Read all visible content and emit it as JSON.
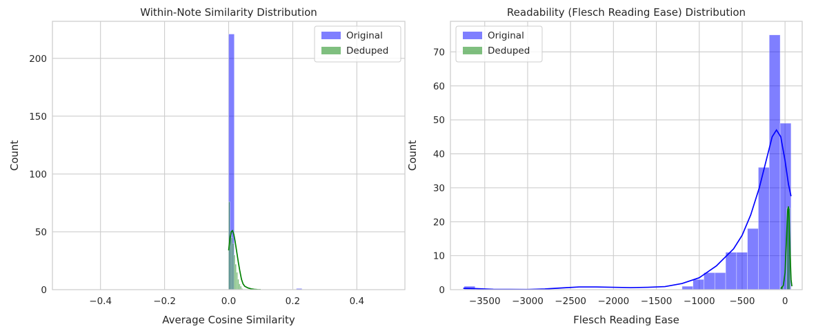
{
  "colors": {
    "original": "#0000ff",
    "deduped": "#008000",
    "grid": "#cccccc",
    "frame": "#cccccc",
    "text": "#262626"
  },
  "chart_data": [
    {
      "type": "bar",
      "subtype": "histogram",
      "title": "Within-Note Similarity Distribution",
      "xlabel": "Average Cosine Similarity",
      "ylabel": "Count",
      "xlim": [
        -0.55,
        0.55
      ],
      "ylim": [
        0,
        232
      ],
      "xticks": [
        -0.4,
        -0.2,
        0.0,
        0.2,
        0.4
      ],
      "xtick_labels": [
        "−0.4",
        "−0.2",
        "0.0",
        "0.2",
        "0.4"
      ],
      "yticks": [
        0,
        50,
        100,
        150,
        200
      ],
      "ytick_labels": [
        "0",
        "50",
        "100",
        "150",
        "200"
      ],
      "grid": true,
      "legend": "top-right",
      "series": [
        {
          "name": "Original",
          "color_key": "original",
          "bins": [
            {
              "x0": 0.0,
              "x1": 0.0176,
              "count": 221
            },
            {
              "x0": 0.2112,
              "x1": 0.2288,
              "count": 1
            }
          ]
        },
        {
          "name": "Deduped",
          "color_key": "deduped",
          "bins": [
            {
              "x0": 0.0,
              "x1": 0.004,
              "count": 76
            },
            {
              "x0": 0.004,
              "x1": 0.008,
              "count": 48
            },
            {
              "x0": 0.008,
              "x1": 0.012,
              "count": 45
            },
            {
              "x0": 0.012,
              "x1": 0.016,
              "count": 40
            },
            {
              "x0": 0.016,
              "x1": 0.02,
              "count": 30
            },
            {
              "x0": 0.02,
              "x1": 0.024,
              "count": 22
            },
            {
              "x0": 0.024,
              "x1": 0.028,
              "count": 15
            },
            {
              "x0": 0.028,
              "x1": 0.032,
              "count": 9
            },
            {
              "x0": 0.032,
              "x1": 0.036,
              "count": 5
            },
            {
              "x0": 0.036,
              "x1": 0.04,
              "count": 3
            },
            {
              "x0": 0.04,
              "x1": 0.044,
              "count": 1
            }
          ],
          "kde": [
            [
              0.0,
              34
            ],
            [
              0.004,
              44
            ],
            [
              0.008,
              50
            ],
            [
              0.012,
              51
            ],
            [
              0.016,
              48
            ],
            [
              0.02,
              42
            ],
            [
              0.025,
              33
            ],
            [
              0.03,
              24
            ],
            [
              0.035,
              16
            ],
            [
              0.04,
              9
            ],
            [
              0.045,
              5
            ],
            [
              0.05,
              3
            ],
            [
              0.06,
              1.5
            ],
            [
              0.07,
              0.7
            ],
            [
              0.08,
              0.3
            ],
            [
              0.09,
              0.1
            ],
            [
              0.1,
              0
            ]
          ]
        }
      ]
    },
    {
      "type": "bar",
      "subtype": "histogram",
      "title": "Readability (Flesch Reading Ease) Distribution",
      "xlabel": "Flesch Reading Ease",
      "ylabel": "Count",
      "xlim": [
        -3900,
        200
      ],
      "ylim": [
        0,
        79
      ],
      "xticks": [
        -3500,
        -3000,
        -2500,
        -2000,
        -1500,
        -1000,
        -500,
        0
      ],
      "xtick_labels": [
        "−3500",
        "−3000",
        "−2500",
        "−2000",
        "−1500",
        "−1000",
        "−500",
        "0"
      ],
      "yticks": [
        0,
        10,
        20,
        30,
        40,
        50,
        60,
        70
      ],
      "ytick_labels": [
        "0",
        "10",
        "20",
        "30",
        "40",
        "50",
        "60",
        "70"
      ],
      "grid": true,
      "legend": "top-left",
      "series": [
        {
          "name": "Original",
          "color_key": "original",
          "bins": [
            {
              "x0": -3740,
              "x1": -3613,
              "count": 1
            },
            {
              "x0": -1200,
              "x1": -1073,
              "count": 1
            },
            {
              "x0": -1073,
              "x1": -946,
              "count": 3
            },
            {
              "x0": -946,
              "x1": -819,
              "count": 5
            },
            {
              "x0": -819,
              "x1": -692,
              "count": 5
            },
            {
              "x0": -692,
              "x1": -565,
              "count": 11
            },
            {
              "x0": -565,
              "x1": -438,
              "count": 11
            },
            {
              "x0": -438,
              "x1": -311,
              "count": 18
            },
            {
              "x0": -311,
              "x1": -184,
              "count": 36
            },
            {
              "x0": -184,
              "x1": -57,
              "count": 75
            },
            {
              "x0": -57,
              "x1": 70,
              "count": 49
            }
          ],
          "kde": [
            [
              -3750,
              0.4
            ],
            [
              -3600,
              0.3
            ],
            [
              -3400,
              0.1
            ],
            [
              -3000,
              0.05
            ],
            [
              -2800,
              0.2
            ],
            [
              -2600,
              0.5
            ],
            [
              -2400,
              0.8
            ],
            [
              -2200,
              0.8
            ],
            [
              -2000,
              0.7
            ],
            [
              -1800,
              0.6
            ],
            [
              -1600,
              0.7
            ],
            [
              -1400,
              0.9
            ],
            [
              -1200,
              1.8
            ],
            [
              -1000,
              3.5
            ],
            [
              -800,
              7
            ],
            [
              -600,
              12
            ],
            [
              -500,
              16
            ],
            [
              -400,
              22
            ],
            [
              -300,
              30
            ],
            [
              -200,
              40
            ],
            [
              -150,
              45
            ],
            [
              -100,
              47
            ],
            [
              -50,
              45
            ],
            [
              0,
              38
            ],
            [
              40,
              31
            ],
            [
              70,
              27.5
            ]
          ]
        },
        {
          "name": "Deduped",
          "color_key": "deduped",
          "bins": [
            {
              "x0": -50,
              "x1": -20,
              "count": 1
            },
            {
              "x0": 20,
              "x1": 60,
              "count": 24
            }
          ],
          "kde": [
            [
              -50,
              0.3
            ],
            [
              -20,
              1.2
            ],
            [
              0,
              5
            ],
            [
              15,
              14
            ],
            [
              30,
              23
            ],
            [
              40,
              24.5
            ],
            [
              50,
              20
            ],
            [
              60,
              10
            ],
            [
              70,
              3
            ],
            [
              80,
              1
            ]
          ]
        }
      ]
    }
  ]
}
